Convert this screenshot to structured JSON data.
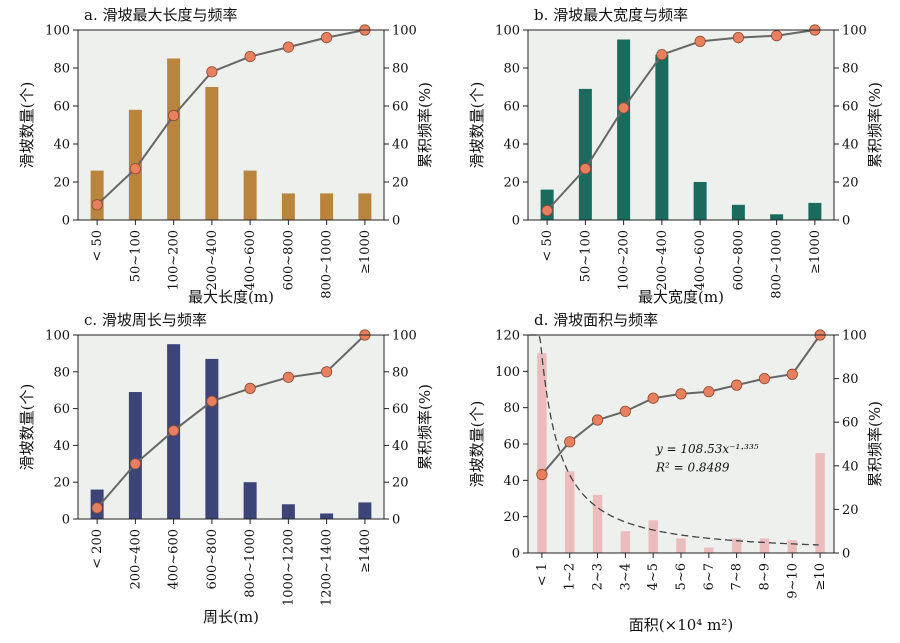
{
  "chart_data": [
    {
      "type": "bar",
      "title": "a. 滑坡最大长度与频率",
      "xlabel": "最大长度(m)",
      "ylabel": "滑坡数量(个)",
      "y2label": "累积频率(%)",
      "categories": [
        "< 50",
        "50~100",
        "100~200",
        "200~400",
        "400~600",
        "600~800",
        "800~1000",
        "≥1000"
      ],
      "ylim": [
        0,
        100
      ],
      "y2lim": [
        0,
        100
      ],
      "yticks": [
        0,
        20,
        40,
        60,
        80,
        100
      ],
      "y2ticks": [
        0,
        20,
        40,
        60,
        80,
        100
      ],
      "series": [
        {
          "kind": "bar",
          "axis": "left",
          "color": "#b8843e",
          "values": [
            26,
            58,
            85,
            70,
            26,
            14,
            14,
            14
          ]
        },
        {
          "kind": "line",
          "axis": "right",
          "color": "#e8805f",
          "values": [
            8,
            27,
            55,
            78,
            86,
            91,
            96,
            100
          ]
        }
      ],
      "grid": false
    },
    {
      "type": "bar",
      "title": "b. 滑坡最大宽度与频率",
      "xlabel": "最大宽度(m)",
      "ylabel": "滑坡数量(个)",
      "y2label": "累积频率(%)",
      "categories": [
        "< 50",
        "50~100",
        "100~200",
        "200~400",
        "400~600",
        "600~800",
        "800~1000",
        "≥1000"
      ],
      "ylim": [
        0,
        100
      ],
      "y2lim": [
        0,
        100
      ],
      "yticks": [
        0,
        20,
        40,
        60,
        80,
        100
      ],
      "y2ticks": [
        0,
        20,
        40,
        60,
        80,
        100
      ],
      "series": [
        {
          "kind": "bar",
          "axis": "left",
          "color": "#1a6b5e",
          "values": [
            16,
            69,
            95,
            87,
            20,
            8,
            3,
            9
          ]
        },
        {
          "kind": "line",
          "axis": "right",
          "color": "#e8805f",
          "values": [
            5,
            27,
            59,
            87,
            94,
            96,
            97,
            100
          ]
        }
      ],
      "grid": false
    },
    {
      "type": "bar",
      "title": "c. 滑坡周长与频率",
      "xlabel": "周长(m)",
      "ylabel": "滑坡数量(个)",
      "y2label": "累积频率(%)",
      "categories": [
        "< 200",
        "200~400",
        "400~600",
        "600~800",
        "800~1000",
        "1000~1200",
        "1200~1400",
        "≥1400"
      ],
      "ylim": [
        0,
        100
      ],
      "y2lim": [
        0,
        100
      ],
      "yticks": [
        0,
        20,
        40,
        60,
        80,
        100
      ],
      "y2ticks": [
        0,
        20,
        40,
        60,
        80,
        100
      ],
      "series": [
        {
          "kind": "bar",
          "axis": "left",
          "color": "#3c4478",
          "values": [
            16,
            69,
            95,
            87,
            20,
            8,
            3,
            9
          ]
        },
        {
          "kind": "line",
          "axis": "right",
          "color": "#e8805f",
          "values": [
            6,
            30,
            48,
            64,
            71,
            77,
            80,
            100
          ]
        }
      ],
      "grid": false
    },
    {
      "type": "bar",
      "title": "d. 滑坡面积与频率",
      "xlabel": "面积(×10⁴ m²)",
      "ylabel": "滑坡数量(个)",
      "y2label": "累积频率(%)",
      "categories": [
        "< 1",
        "1~2",
        "2~3",
        "3~4",
        "4~5",
        "5~6",
        "6~7",
        "7~8",
        "8~9",
        "9~10",
        "≥10"
      ],
      "ylim": [
        0,
        120
      ],
      "y2lim": [
        0,
        100
      ],
      "yticks": [
        0,
        20,
        40,
        60,
        80,
        100,
        120
      ],
      "y2ticks": [
        0,
        20,
        40,
        60,
        80,
        100
      ],
      "series": [
        {
          "kind": "bar",
          "axis": "left",
          "color": "#ebbcbc",
          "values": [
            110,
            45,
            32,
            12,
            18,
            8,
            3,
            8,
            8,
            7,
            55
          ]
        },
        {
          "kind": "line",
          "axis": "right",
          "color": "#e8805f",
          "values": [
            36,
            51,
            61,
            65,
            71,
            73,
            74,
            77,
            80,
            82,
            100
          ]
        }
      ],
      "fit": {
        "a": 108.53,
        "b": -1.335,
        "equation": "y = 108.53x⁻¹·³³⁵",
        "r2": "R² = 0.8489",
        "color": "#444444"
      },
      "grid": false
    }
  ]
}
